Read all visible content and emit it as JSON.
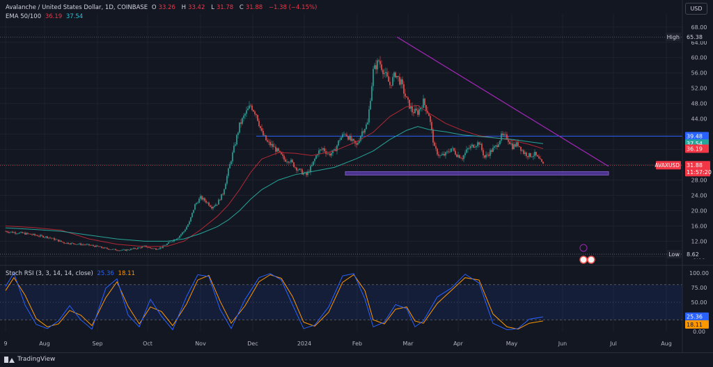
{
  "legend": {
    "title": "Avalanche / United States Dollar, 1D, COINBASE",
    "o_label": "O",
    "o_value": "33.26",
    "h_label": "H",
    "h_value": "33.42",
    "l_label": "L",
    "l_value": "31.78",
    "c_label": "C",
    "c_value": "31.88",
    "change": "−1.38 (−4.15%)",
    "ema_label": "EMA 50/100",
    "ema50_value": "36.19",
    "ema100_value": "37.54",
    "rsi_label": "Stoch RSI (3, 3, 14, 14, close)",
    "rsi_k_value": "25.36",
    "rsi_d_value": "18.11"
  },
  "currency_button": "USD",
  "brand": "TradingView",
  "colors": {
    "background": "#131722",
    "up": "#26a69a",
    "down": "#ef5350",
    "ema50": "#b22833",
    "ema100": "#26a69a",
    "trendline": "#9c27b0",
    "resistance": "#2962ff",
    "stoch_k": "#2962ff",
    "stoch_d": "#ff9800"
  },
  "chart_data": {
    "type": "candlestick",
    "symbol": "AVAXUSD",
    "timeframe": "1D",
    "price_axis_ticks": [
      "68.00",
      "64.00",
      "60.00",
      "56.00",
      "52.00",
      "48.00",
      "44.00",
      "40.00",
      "36.00",
      "32.00",
      "28.00",
      "24.00",
      "20.00",
      "16.00",
      "12.00",
      "8.00"
    ],
    "price_range": [
      6.8,
      69.6
    ],
    "time_axis_labels": [
      "9",
      "Aug",
      "Sep",
      "Oct",
      "Nov",
      "Dec",
      "2024",
      "Feb",
      "Mar",
      "Apr",
      "May",
      "Jun",
      "Jul",
      "Aug"
    ],
    "high_label": "High",
    "high_value": "65.38",
    "low_label": "Low",
    "low_value": "8.62",
    "current_price_label": "AVAXUSD",
    "current_price": "31.88",
    "countdown": "11:57:20",
    "resistance_value": "39.48",
    "ema100_tag": "37.54",
    "ema50_tag": "36.19",
    "support_zone": [
      29.3,
      30.2
    ],
    "close_series": [
      [
        0,
        14.6
      ],
      [
        6,
        14.3
      ],
      [
        12,
        14.1
      ],
      [
        18,
        13.8
      ],
      [
        24,
        13.4
      ],
      [
        30,
        13.1
      ],
      [
        36,
        12.4
      ],
      [
        42,
        11.6
      ],
      [
        48,
        11.4
      ],
      [
        54,
        11.2
      ],
      [
        60,
        11.0
      ],
      [
        66,
        10.6
      ],
      [
        72,
        10.1
      ],
      [
        78,
        9.8
      ],
      [
        84,
        9.6
      ],
      [
        90,
        9.9
      ],
      [
        96,
        10.3
      ],
      [
        100,
        10.7
      ],
      [
        104,
        10.2
      ],
      [
        108,
        10.0
      ],
      [
        112,
        10.4
      ],
      [
        116,
        11.3
      ],
      [
        120,
        12.2
      ],
      [
        124,
        13.1
      ],
      [
        128,
        14.6
      ],
      [
        132,
        17.0
      ],
      [
        136,
        21.5
      ],
      [
        140,
        23.4
      ],
      [
        144,
        22.4
      ],
      [
        148,
        21.0
      ],
      [
        152,
        21.9
      ],
      [
        156,
        24.5
      ],
      [
        160,
        30.5
      ],
      [
        164,
        36.3
      ],
      [
        168,
        42.3
      ],
      [
        172,
        45.2
      ],
      [
        176,
        47.5
      ],
      [
        180,
        45.3
      ],
      [
        184,
        40.3
      ],
      [
        188,
        37.8
      ],
      [
        192,
        36.8
      ],
      [
        196,
        35.2
      ],
      [
        200,
        33.4
      ],
      [
        204,
        33.2
      ],
      [
        208,
        31.4
      ],
      [
        212,
        30.2
      ],
      [
        216,
        29.3
      ],
      [
        220,
        31.7
      ],
      [
        224,
        35.2
      ],
      [
        228,
        36.2
      ],
      [
        232,
        34.7
      ],
      [
        236,
        35.4
      ],
      [
        240,
        38.8
      ],
      [
        244,
        40.3
      ],
      [
        248,
        38.3
      ],
      [
        252,
        37.0
      ],
      [
        256,
        40.7
      ],
      [
        260,
        42.8
      ],
      [
        264,
        56.5
      ],
      [
        268,
        59.2
      ],
      [
        272,
        56.0
      ],
      [
        276,
        52.9
      ],
      [
        280,
        55.8
      ],
      [
        284,
        53.3
      ],
      [
        288,
        48.9
      ],
      [
        292,
        46.0
      ],
      [
        296,
        45.7
      ],
      [
        300,
        48.5
      ],
      [
        304,
        45.1
      ],
      [
        308,
        36.2
      ],
      [
        312,
        34.2
      ],
      [
        316,
        34.7
      ],
      [
        320,
        36.3
      ],
      [
        324,
        34.7
      ],
      [
        328,
        33.9
      ],
      [
        332,
        36.1
      ],
      [
        336,
        37.1
      ],
      [
        340,
        37.8
      ],
      [
        344,
        33.9
      ],
      [
        348,
        35.4
      ],
      [
        352,
        36.7
      ],
      [
        356,
        39.4
      ],
      [
        360,
        39.2
      ],
      [
        364,
        36.8
      ],
      [
        368,
        37.4
      ],
      [
        372,
        35.2
      ],
      [
        376,
        34.4
      ],
      [
        380,
        34.7
      ],
      [
        384,
        32.8
      ],
      [
        386,
        31.9
      ]
    ],
    "ema50_series": [
      [
        0,
        16.0
      ],
      [
        20,
        15.6
      ],
      [
        40,
        14.9
      ],
      [
        60,
        12.6
      ],
      [
        80,
        11.2
      ],
      [
        100,
        10.6
      ],
      [
        116,
        10.7
      ],
      [
        128,
        12.0
      ],
      [
        140,
        15.0
      ],
      [
        152,
        18.5
      ],
      [
        160,
        21.5
      ],
      [
        168,
        25.5
      ],
      [
        176,
        30.0
      ],
      [
        184,
        33.5
      ],
      [
        196,
        35.2
      ],
      [
        208,
        35.0
      ],
      [
        220,
        34.4
      ],
      [
        236,
        35.6
      ],
      [
        252,
        38.0
      ],
      [
        264,
        40.5
      ],
      [
        276,
        44.6
      ],
      [
        288,
        47.2
      ],
      [
        296,
        47.5
      ],
      [
        304,
        45.5
      ],
      [
        316,
        42.8
      ],
      [
        328,
        41.0
      ],
      [
        340,
        39.6
      ],
      [
        352,
        39.0
      ],
      [
        364,
        38.4
      ],
      [
        376,
        37.3
      ],
      [
        386,
        36.2
      ]
    ],
    "ema100_series": [
      [
        0,
        15.5
      ],
      [
        20,
        15.1
      ],
      [
        40,
        14.6
      ],
      [
        60,
        13.6
      ],
      [
        80,
        12.6
      ],
      [
        100,
        12.0
      ],
      [
        116,
        12.0
      ],
      [
        128,
        12.6
      ],
      [
        140,
        14.0
      ],
      [
        152,
        15.8
      ],
      [
        160,
        17.6
      ],
      [
        168,
        20.0
      ],
      [
        176,
        23.0
      ],
      [
        184,
        25.5
      ],
      [
        196,
        28.0
      ],
      [
        208,
        29.4
      ],
      [
        220,
        30.2
      ],
      [
        236,
        31.3
      ],
      [
        252,
        33.6
      ],
      [
        264,
        35.6
      ],
      [
        276,
        38.6
      ],
      [
        288,
        41.0
      ],
      [
        296,
        42.0
      ],
      [
        304,
        41.2
      ],
      [
        316,
        40.6
      ],
      [
        328,
        39.8
      ],
      [
        340,
        39.4
      ],
      [
        352,
        39.0
      ],
      [
        364,
        38.6
      ],
      [
        376,
        38.0
      ],
      [
        386,
        37.5
      ]
    ],
    "resistance": {
      "value": 39.48,
      "from_index": 180,
      "to_index": 433
    },
    "trendline": {
      "from": [
        281,
        65.4
      ],
      "to": [
        433,
        31.6
      ]
    },
    "stoch_rsi": {
      "range": [
        0,
        100
      ],
      "ticks": [
        "100.00",
        "75.00",
        "50.00",
        "25.00",
        "0.00"
      ],
      "bands": [
        20,
        80
      ],
      "k_series": [
        [
          0,
          77
        ],
        [
          6,
          100
        ],
        [
          14,
          45
        ],
        [
          22,
          12
        ],
        [
          30,
          5
        ],
        [
          38,
          18
        ],
        [
          46,
          44
        ],
        [
          54,
          20
        ],
        [
          62,
          4
        ],
        [
          72,
          74
        ],
        [
          80,
          90
        ],
        [
          88,
          28
        ],
        [
          96,
          8
        ],
        [
          104,
          55
        ],
        [
          112,
          26
        ],
        [
          120,
          3
        ],
        [
          130,
          60
        ],
        [
          138,
          97
        ],
        [
          146,
          94
        ],
        [
          154,
          38
        ],
        [
          162,
          5
        ],
        [
          172,
          55
        ],
        [
          182,
          92
        ],
        [
          190,
          99
        ],
        [
          198,
          88
        ],
        [
          206,
          46
        ],
        [
          214,
          5
        ],
        [
          222,
          11
        ],
        [
          232,
          42
        ],
        [
          242,
          95
        ],
        [
          250,
          99
        ],
        [
          258,
          56
        ],
        [
          264,
          8
        ],
        [
          272,
          16
        ],
        [
          280,
          46
        ],
        [
          288,
          39
        ],
        [
          294,
          8
        ],
        [
          300,
          18
        ],
        [
          310,
          59
        ],
        [
          320,
          74
        ],
        [
          330,
          98
        ],
        [
          340,
          83
        ],
        [
          350,
          14
        ],
        [
          360,
          3
        ],
        [
          368,
          5
        ],
        [
          376,
          21
        ],
        [
          386,
          25
        ]
      ],
      "d_series": [
        [
          0,
          70
        ],
        [
          6,
          92
        ],
        [
          14,
          62
        ],
        [
          22,
          22
        ],
        [
          30,
          8
        ],
        [
          38,
          13
        ],
        [
          46,
          36
        ],
        [
          54,
          28
        ],
        [
          62,
          10
        ],
        [
          72,
          58
        ],
        [
          80,
          85
        ],
        [
          88,
          43
        ],
        [
          96,
          13
        ],
        [
          104,
          42
        ],
        [
          112,
          34
        ],
        [
          120,
          10
        ],
        [
          130,
          47
        ],
        [
          138,
          88
        ],
        [
          146,
          96
        ],
        [
          154,
          52
        ],
        [
          162,
          14
        ],
        [
          172,
          44
        ],
        [
          182,
          85
        ],
        [
          190,
          97
        ],
        [
          198,
          91
        ],
        [
          206,
          60
        ],
        [
          214,
          16
        ],
        [
          222,
          9
        ],
        [
          232,
          33
        ],
        [
          242,
          84
        ],
        [
          250,
          97
        ],
        [
          258,
          70
        ],
        [
          264,
          20
        ],
        [
          272,
          13
        ],
        [
          280,
          38
        ],
        [
          288,
          42
        ],
        [
          294,
          18
        ],
        [
          300,
          14
        ],
        [
          310,
          48
        ],
        [
          320,
          70
        ],
        [
          330,
          92
        ],
        [
          340,
          88
        ],
        [
          350,
          30
        ],
        [
          360,
          8
        ],
        [
          368,
          4
        ],
        [
          376,
          14
        ],
        [
          386,
          18
        ]
      ]
    }
  }
}
